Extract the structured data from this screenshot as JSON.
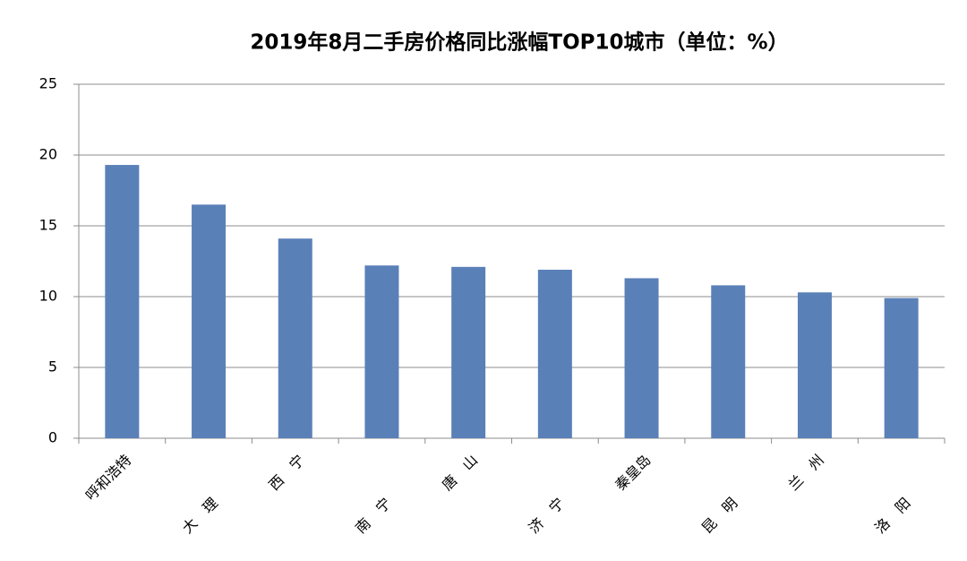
{
  "chart_data": {
    "type": "bar",
    "title": "2019年8月二手房价格同比涨幅TOP10城市（单位：%）",
    "categories": [
      "呼和浩特",
      "大　理",
      "西　宁",
      "南　宁",
      "唐　山",
      "济　宁",
      "秦皇岛",
      "昆　明",
      "兰　州",
      "洛　阳"
    ],
    "values": [
      19.3,
      16.5,
      14.1,
      12.2,
      12.1,
      11.9,
      11.3,
      10.8,
      10.3,
      9.9
    ],
    "color": "#5a80b8",
    "ylim": [
      0,
      25
    ],
    "yticks": [
      0,
      5,
      10,
      15,
      20,
      25
    ],
    "grid": true
  }
}
